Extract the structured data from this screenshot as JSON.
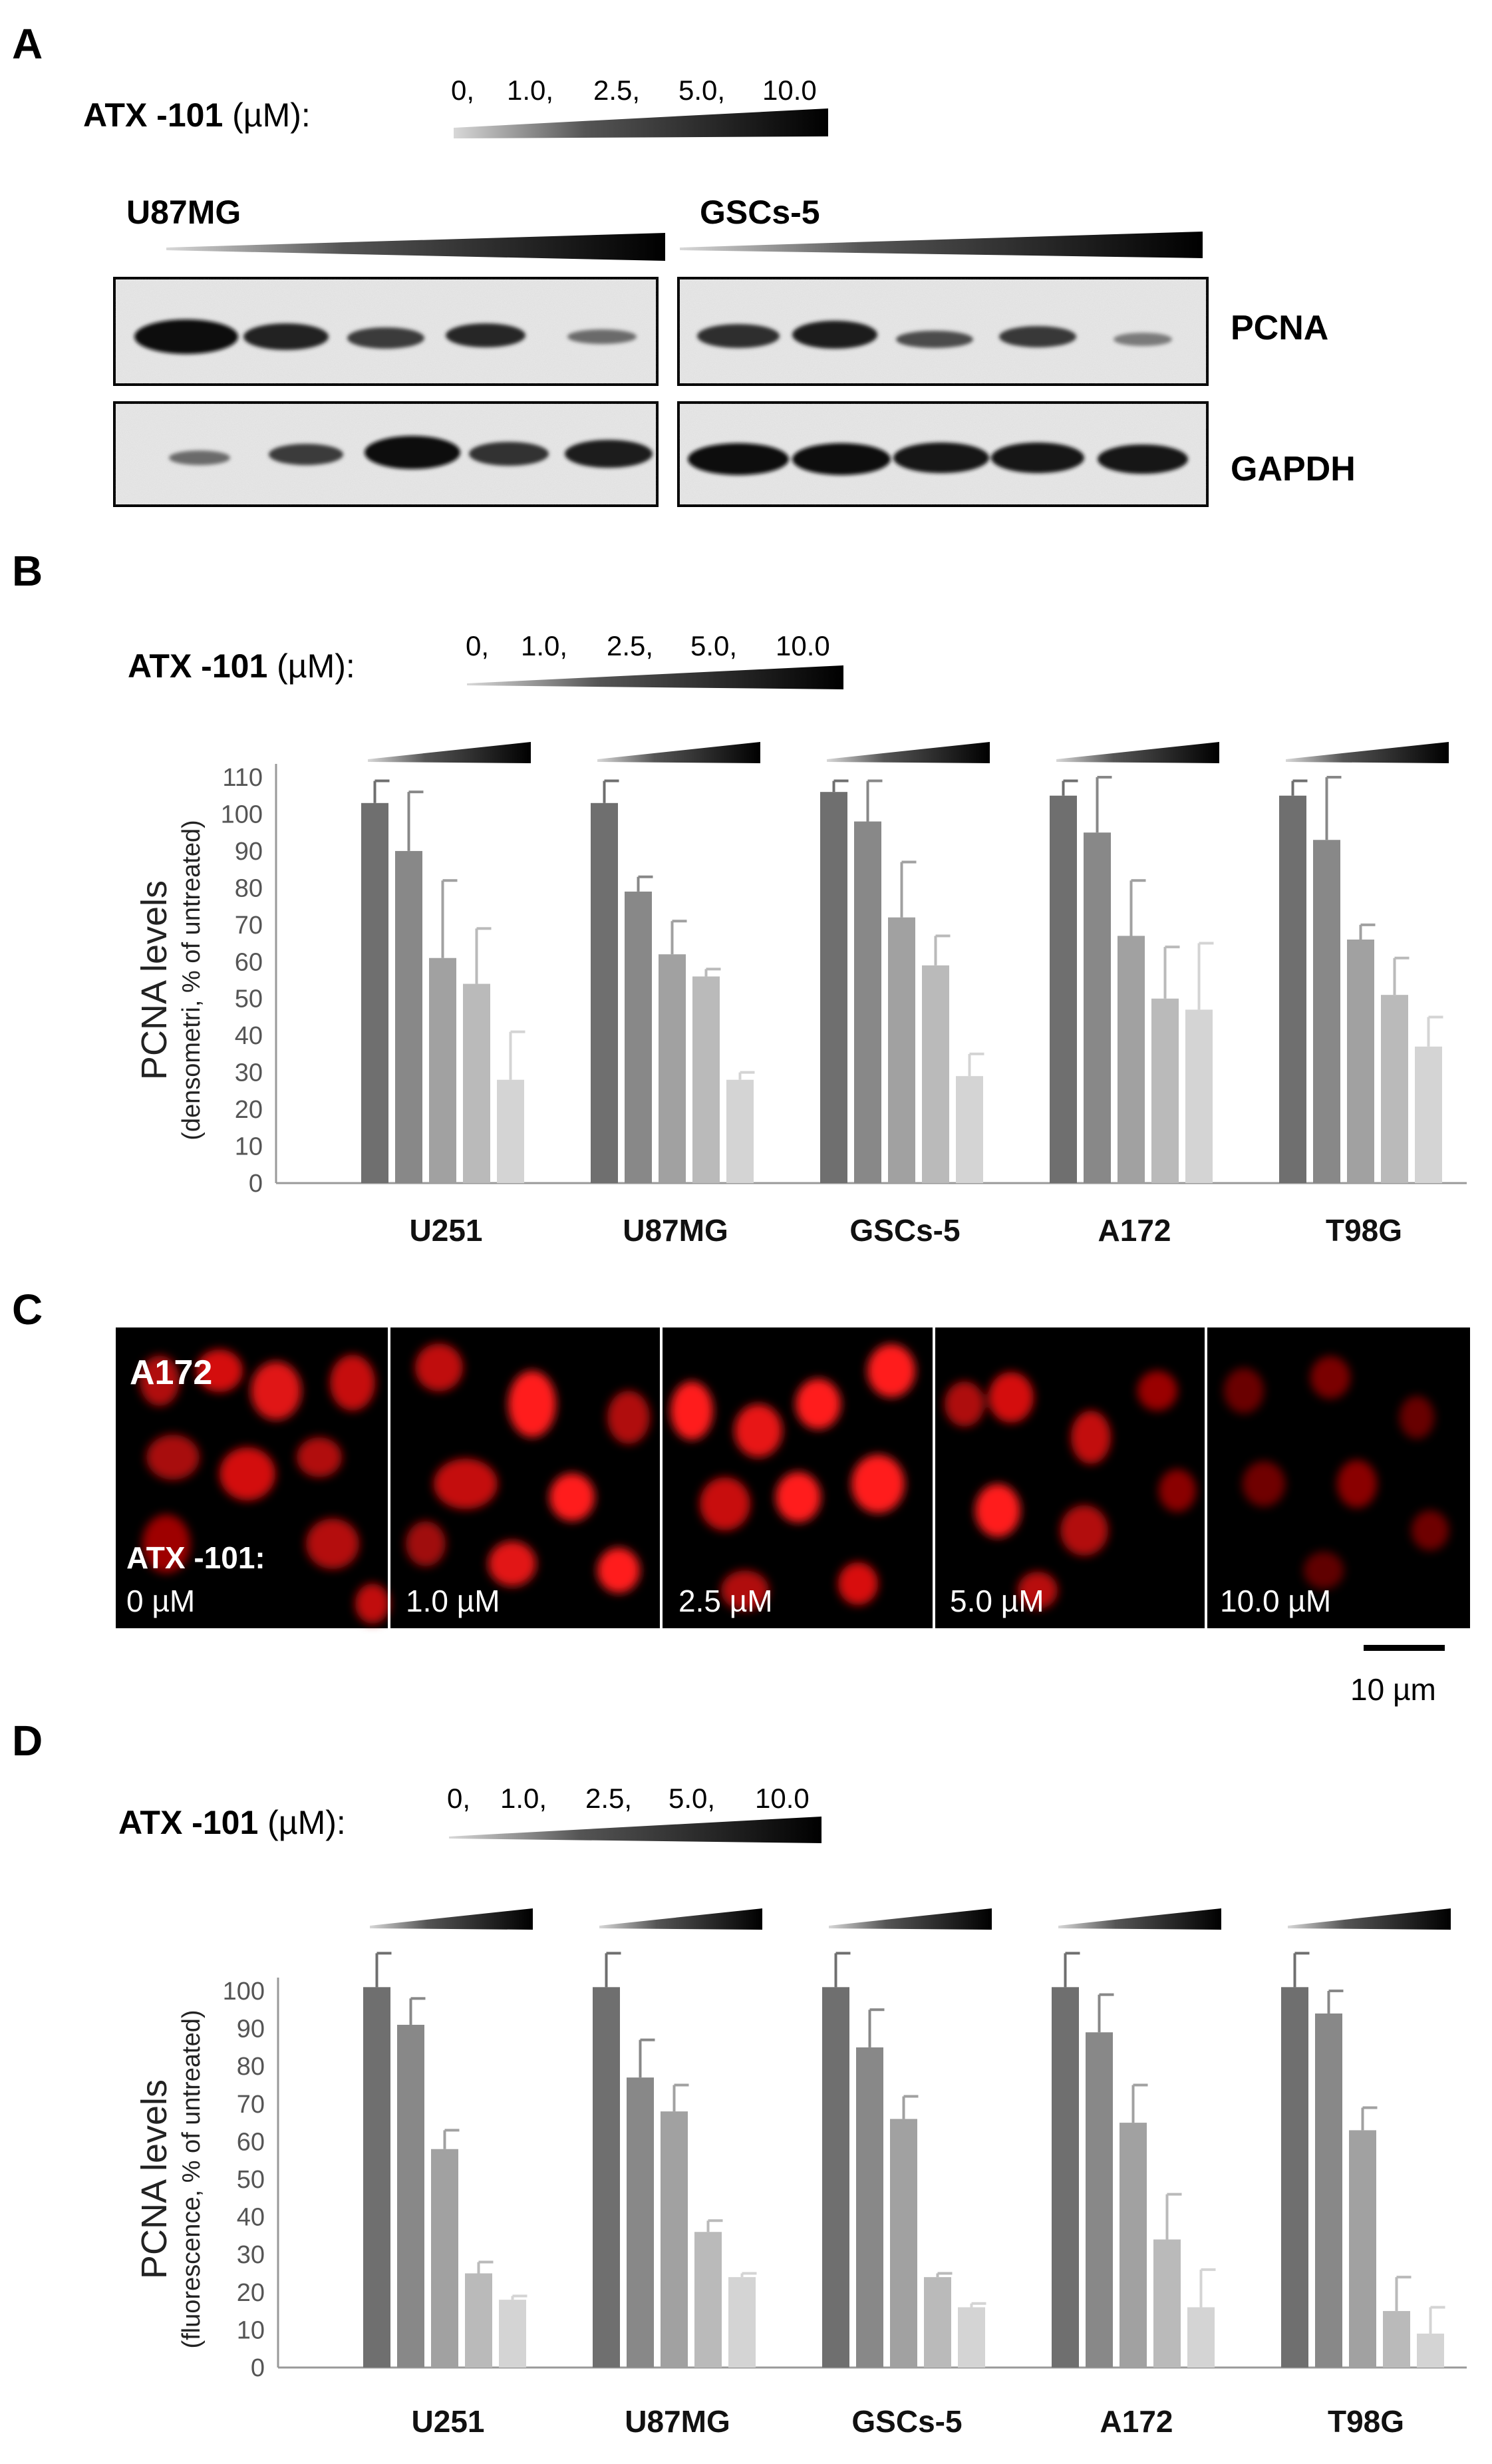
{
  "panel_a": {
    "letter": "A",
    "treatment_name": "ATX -101",
    "treatment_unit": " (µM):",
    "doses": [
      "0,",
      "1.0,",
      "2.5,",
      "5.0,",
      "10.0"
    ],
    "blot_groups": [
      "U87MG",
      "GSCs-5"
    ],
    "bands": [
      "PCNA",
      "GAPDH"
    ]
  },
  "panel_b": {
    "letter": "B",
    "treatment_name": "ATX -101",
    "treatment_unit": " (µM):",
    "doses": [
      "0,",
      "1.0,",
      "2.5,",
      "5.0,",
      "10.0"
    ]
  },
  "panel_c": {
    "letter": "C",
    "cell_line": "A172",
    "treatment_caption": "ATX -101:",
    "dose_labels": [
      "0 µM",
      "1.0 µM",
      "2.5 µM",
      "5.0 µM",
      "10.0 µM"
    ],
    "scale_bar": "10 µm"
  },
  "panel_d": {
    "letter": "D",
    "treatment_name": "ATX -101",
    "treatment_unit": " (µM):",
    "doses": [
      "0,",
      "1.0,",
      "2.5,",
      "5.0,",
      "10.0"
    ]
  },
  "colors": {
    "bar_shades": [
      "#6f6f6f",
      "#888888",
      "#a1a1a1",
      "#bababa",
      "#d4d4d4"
    ],
    "fluorescence": "#ff1a1a"
  },
  "chart_data": [
    {
      "id": "B",
      "type": "bar",
      "ylabel": "PCNA levels",
      "ylabel_sub": "(densometri, % of untreated)",
      "ylim": [
        0,
        110
      ],
      "yticks": [
        "0",
        "10",
        "20",
        "30",
        "40",
        "50",
        "60",
        "70",
        "80",
        "90",
        "100",
        "110"
      ],
      "categories": [
        "U251",
        "U87MG",
        "GSCs-5",
        "A172",
        "T98G"
      ],
      "series": [
        {
          "values": [
            103,
            103,
            106,
            105,
            105
          ],
          "errors": [
            6,
            6,
            3,
            4,
            4
          ]
        },
        {
          "values": [
            90,
            79,
            98,
            95,
            93
          ],
          "errors": [
            16,
            4,
            11,
            15,
            17
          ]
        },
        {
          "values": [
            61,
            62,
            72,
            67,
            66
          ],
          "errors": [
            21,
            9,
            15,
            15,
            4
          ]
        },
        {
          "values": [
            54,
            56,
            59,
            50,
            51
          ],
          "errors": [
            15,
            2,
            8,
            14,
            10
          ]
        },
        {
          "values": [
            28,
            28,
            29,
            47,
            37
          ],
          "errors": [
            13,
            2,
            6,
            18,
            8
          ]
        }
      ]
    },
    {
      "id": "D",
      "type": "bar",
      "ylabel": "PCNA levels",
      "ylabel_sub": "(fluorescence, % of untreated)",
      "ylim": [
        0,
        100
      ],
      "yticks": [
        "0",
        "10",
        "20",
        "30",
        "40",
        "50",
        "60",
        "70",
        "80",
        "90",
        "100"
      ],
      "categories": [
        "U251",
        "U87MG",
        "GSCs-5",
        "A172",
        "T98G"
      ],
      "series": [
        {
          "values": [
            101,
            101,
            101,
            101,
            101
          ],
          "errors": [
            9,
            9,
            9,
            9,
            9
          ]
        },
        {
          "values": [
            91,
            77,
            85,
            89,
            94
          ],
          "errors": [
            7,
            10,
            10,
            10,
            6
          ]
        },
        {
          "values": [
            58,
            68,
            66,
            65,
            63
          ],
          "errors": [
            5,
            7,
            6,
            10,
            6
          ]
        },
        {
          "values": [
            25,
            36,
            24,
            34,
            15
          ],
          "errors": [
            3,
            3,
            1,
            12,
            9
          ]
        },
        {
          "values": [
            18,
            24,
            16,
            16,
            9
          ],
          "errors": [
            1,
            1,
            1,
            10,
            7
          ]
        }
      ]
    }
  ]
}
